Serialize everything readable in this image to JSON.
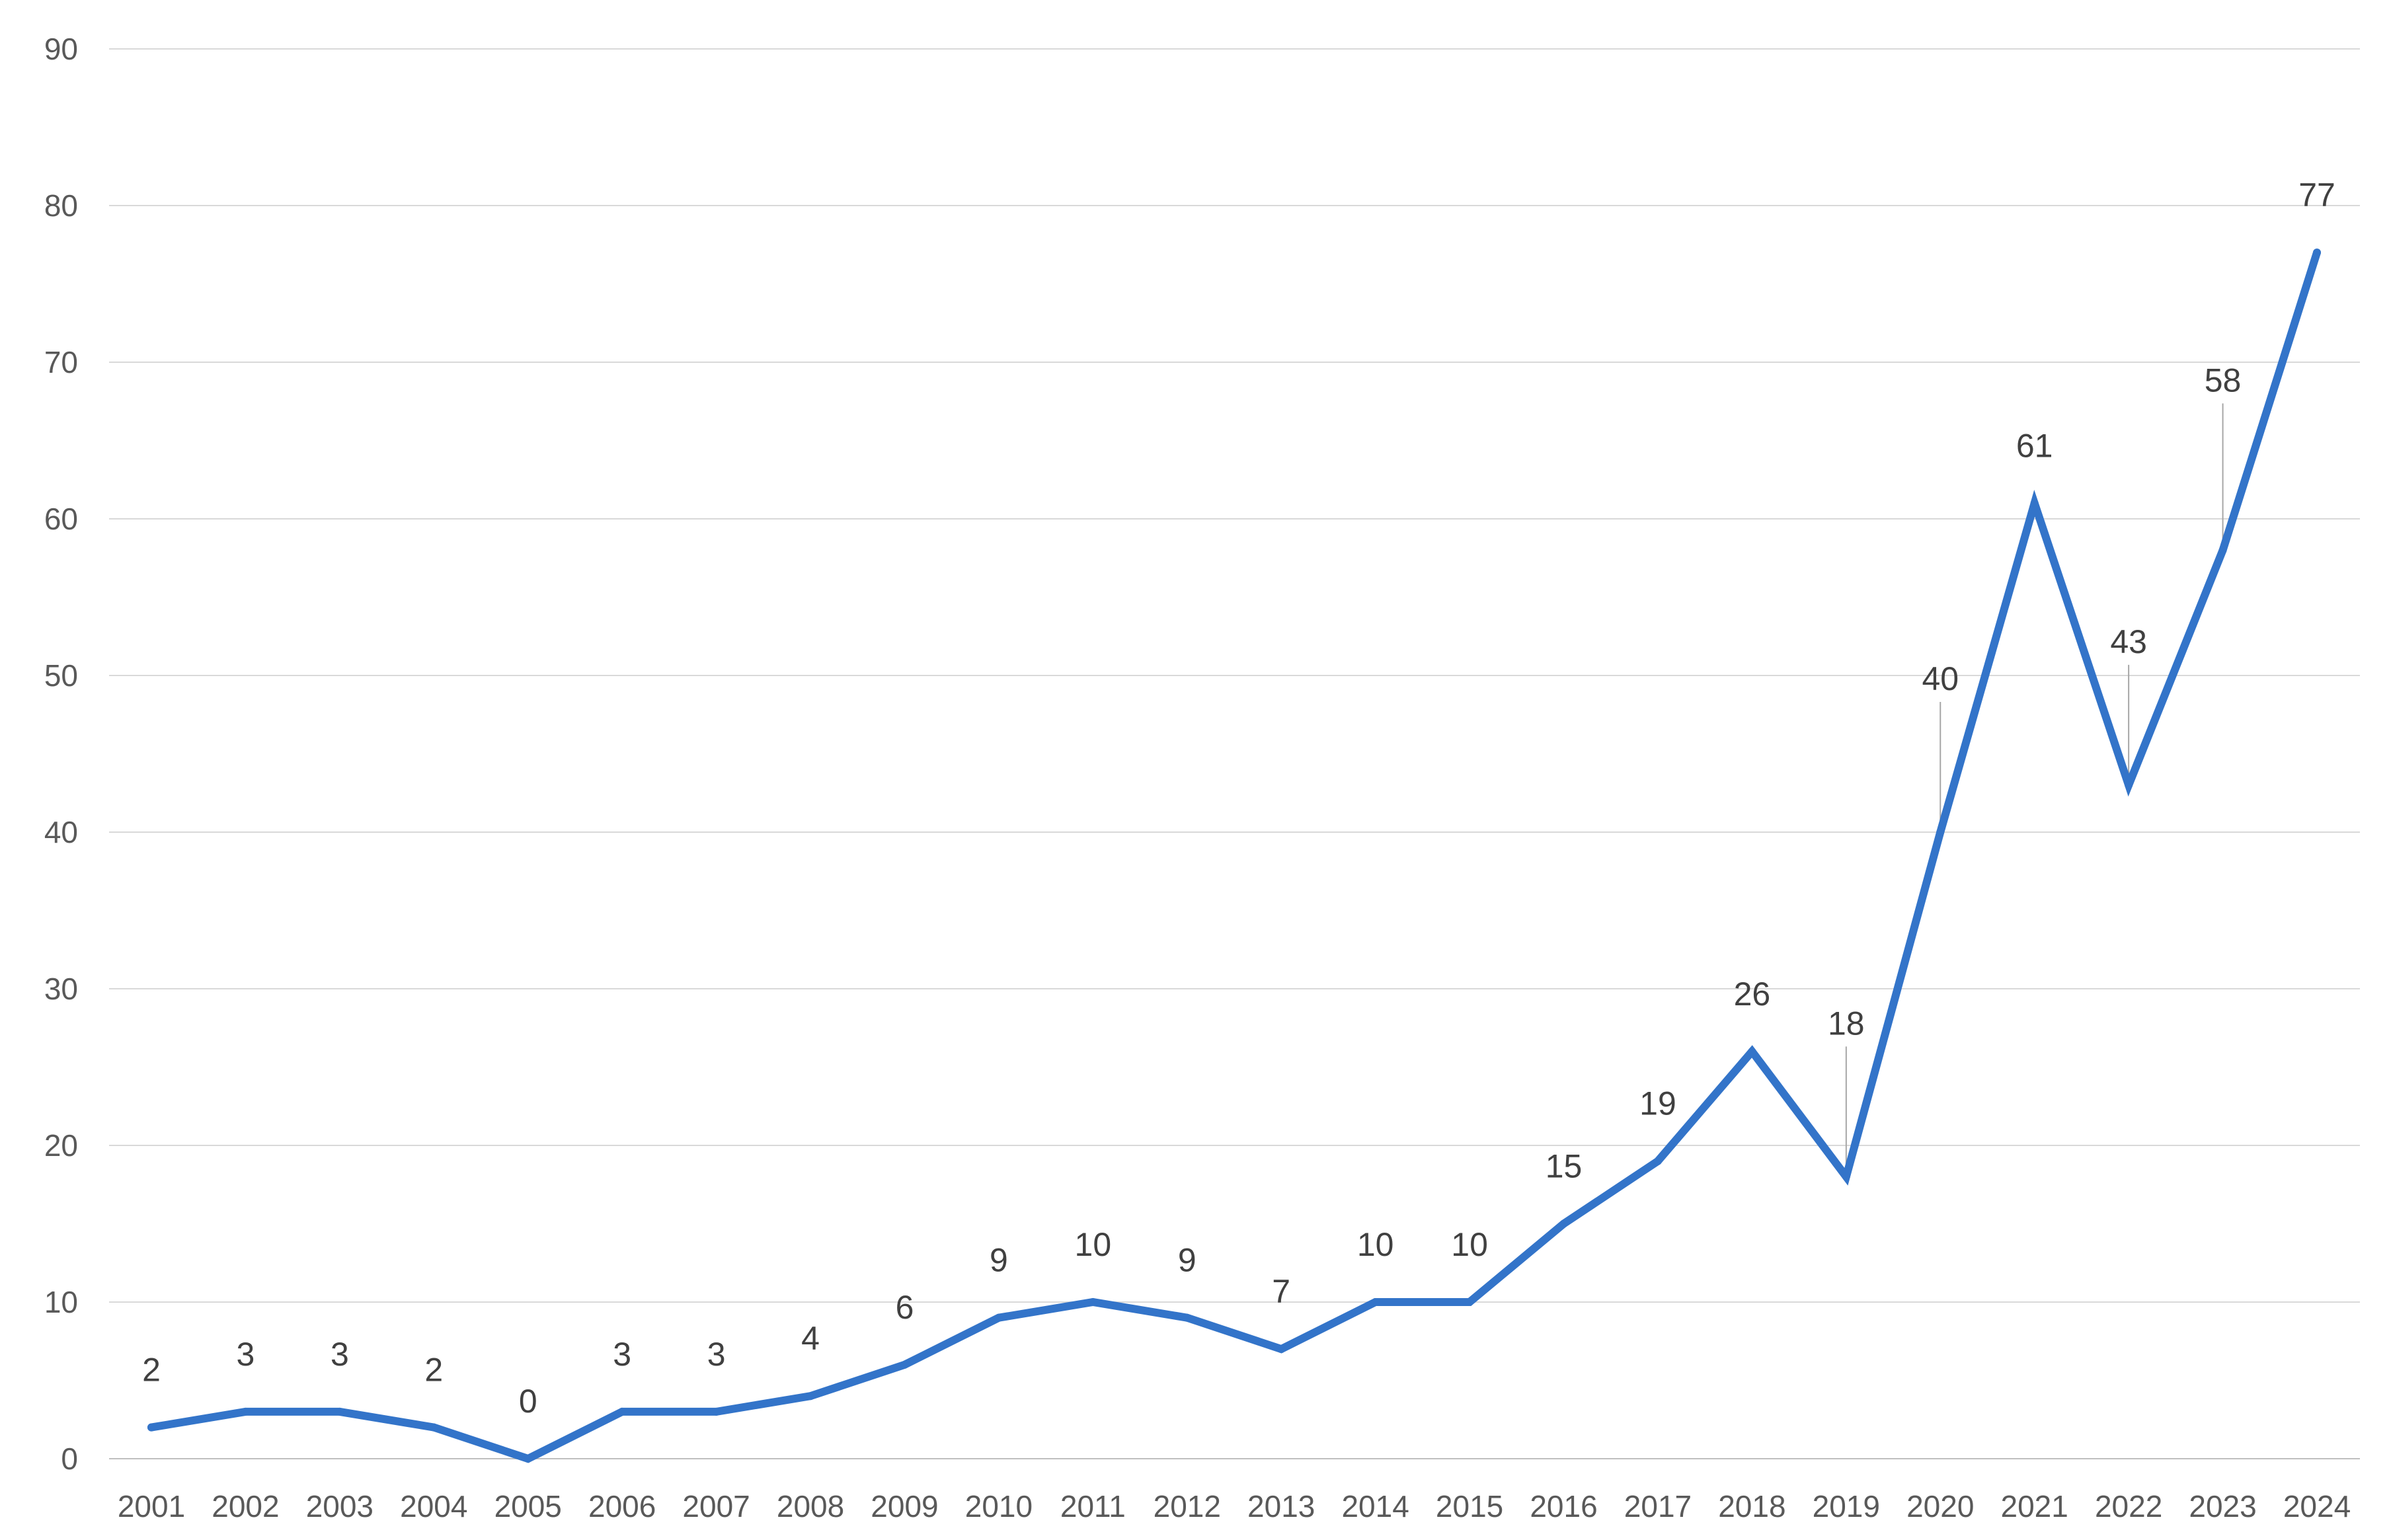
{
  "chart_data": {
    "type": "line",
    "title": "",
    "xlabel": "",
    "ylabel": "",
    "ylim": [
      0,
      90
    ],
    "yticks": [
      0,
      10,
      20,
      30,
      40,
      50,
      60,
      70,
      80,
      90
    ],
    "grid": true,
    "legend": "none",
    "color": "#3374C9",
    "categories": [
      "2001",
      "2002",
      "2003",
      "2004",
      "2005",
      "2006",
      "2007",
      "2008",
      "2009",
      "2010",
      "2011",
      "2012",
      "2013",
      "2014",
      "2015",
      "2016",
      "2017",
      "2018",
      "2019",
      "2020",
      "2021",
      "2022",
      "2023",
      "2024"
    ],
    "values": [
      2,
      3,
      3,
      2,
      0,
      3,
      3,
      4,
      6,
      9,
      10,
      9,
      7,
      10,
      10,
      15,
      19,
      26,
      18,
      40,
      61,
      43,
      58,
      77
    ],
    "data_labels": [
      "2",
      "3",
      "3",
      "2",
      "0",
      "3",
      "3",
      "4",
      "6",
      "9",
      "10",
      "9",
      "7",
      "10",
      "10",
      "15",
      "19",
      "26",
      "18",
      "40",
      "61",
      "43",
      "58",
      "77"
    ]
  }
}
